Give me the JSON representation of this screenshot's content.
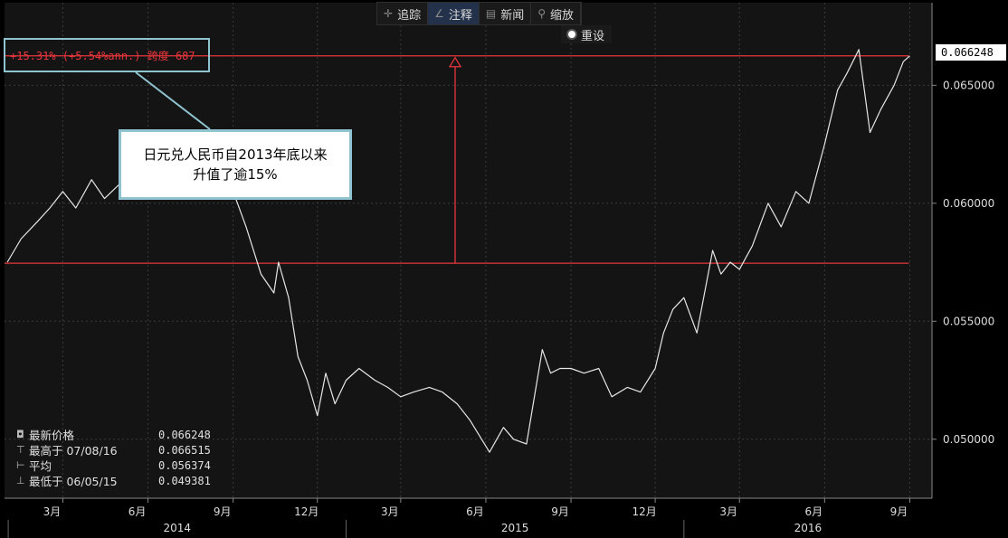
{
  "toolbar": {
    "track": "追踪",
    "annotate": "注释",
    "news": "新闻",
    "zoom": "缩放",
    "reset": "重设"
  },
  "annotation": {
    "span_label": "+15.31% (+5.54%ann.) 跨度 687",
    "callout_line1": "日元兑人民币自2013年底以来",
    "callout_line2": "升值了逾15%"
  },
  "last_price_tag": "0.066248",
  "legend": {
    "last": {
      "label": "最新价格",
      "value": "0.066248"
    },
    "high": {
      "label": "最高于 07/08/16",
      "value": "0.066515"
    },
    "avg": {
      "label": "平均",
      "value": "0.056374"
    },
    "low": {
      "label": "最低于 06/05/15",
      "value": "0.049381"
    }
  },
  "colors": {
    "line": "#e6e6e6",
    "annotation": "#e8363c",
    "callout_border": "#8fc3cf"
  },
  "chart_data": {
    "type": "line",
    "title": "",
    "xlabel": "",
    "ylabel": "",
    "ylim": [
      0.0475,
      0.0685
    ],
    "y_ticks": [
      "0.050000",
      "0.055000",
      "0.060000",
      "0.065000"
    ],
    "x_tick_labels": [
      "3月",
      "6月",
      "9月",
      "12月",
      "3月",
      "6月",
      "9月",
      "12月",
      "3月",
      "6月",
      "9月"
    ],
    "year_labels": [
      "2014",
      "2015",
      "2016"
    ],
    "reference_levels": [
      0.05746,
      0.06625
    ],
    "series": [
      {
        "name": "",
        "x": [
          "2013-12-31",
          "2014-01-15",
          "2014-02-01",
          "2014-02-15",
          "2014-03-01",
          "2014-03-15",
          "2014-04-01",
          "2014-04-15",
          "2014-05-01",
          "2014-05-15",
          "2014-06-01",
          "2014-06-15",
          "2014-07-01",
          "2014-07-15",
          "2014-08-01",
          "2014-08-15",
          "2014-09-01",
          "2014-09-15",
          "2014-10-01",
          "2014-10-15",
          "2014-10-20",
          "2014-10-31",
          "2014-11-10",
          "2014-11-20",
          "2014-12-01",
          "2014-12-10",
          "2014-12-20",
          "2015-01-01",
          "2015-01-15",
          "2015-02-01",
          "2015-02-15",
          "2015-03-01",
          "2015-03-15",
          "2015-04-01",
          "2015-04-15",
          "2015-05-01",
          "2015-05-15",
          "2015-06-05",
          "2015-06-20",
          "2015-07-01",
          "2015-07-15",
          "2015-08-01",
          "2015-08-10",
          "2015-08-20",
          "2015-09-01",
          "2015-09-15",
          "2015-10-01",
          "2015-10-15",
          "2015-11-01",
          "2015-11-15",
          "2015-12-01",
          "2015-12-10",
          "2015-12-20",
          "2016-01-01",
          "2016-01-15",
          "2016-02-01",
          "2016-02-10",
          "2016-02-20",
          "2016-03-01",
          "2016-03-15",
          "2016-04-01",
          "2016-04-15",
          "2016-05-01",
          "2016-05-15",
          "2016-06-01",
          "2016-06-15",
          "2016-06-25",
          "2016-07-08",
          "2016-07-20",
          "2016-08-01",
          "2016-08-15",
          "2016-08-25",
          "2016-09-01"
        ],
        "y": [
          0.0575,
          0.0585,
          0.0592,
          0.0598,
          0.0605,
          0.0598,
          0.061,
          0.0602,
          0.0608,
          0.0612,
          0.0615,
          0.0618,
          0.062,
          0.0622,
          0.0625,
          0.0618,
          0.0605,
          0.059,
          0.057,
          0.0562,
          0.0575,
          0.056,
          0.0535,
          0.0525,
          0.051,
          0.0528,
          0.0515,
          0.0525,
          0.053,
          0.0525,
          0.0522,
          0.0518,
          0.052,
          0.0522,
          0.052,
          0.0515,
          0.0508,
          0.04945,
          0.0505,
          0.05,
          0.0498,
          0.0538,
          0.0528,
          0.053,
          0.053,
          0.0528,
          0.053,
          0.0518,
          0.0522,
          0.052,
          0.053,
          0.0545,
          0.0555,
          0.056,
          0.0545,
          0.058,
          0.057,
          0.0575,
          0.0572,
          0.0582,
          0.06,
          0.059,
          0.0605,
          0.06,
          0.0625,
          0.0648,
          0.0655,
          0.066515,
          0.063,
          0.064,
          0.065,
          0.066,
          0.066248
        ]
      }
    ]
  }
}
